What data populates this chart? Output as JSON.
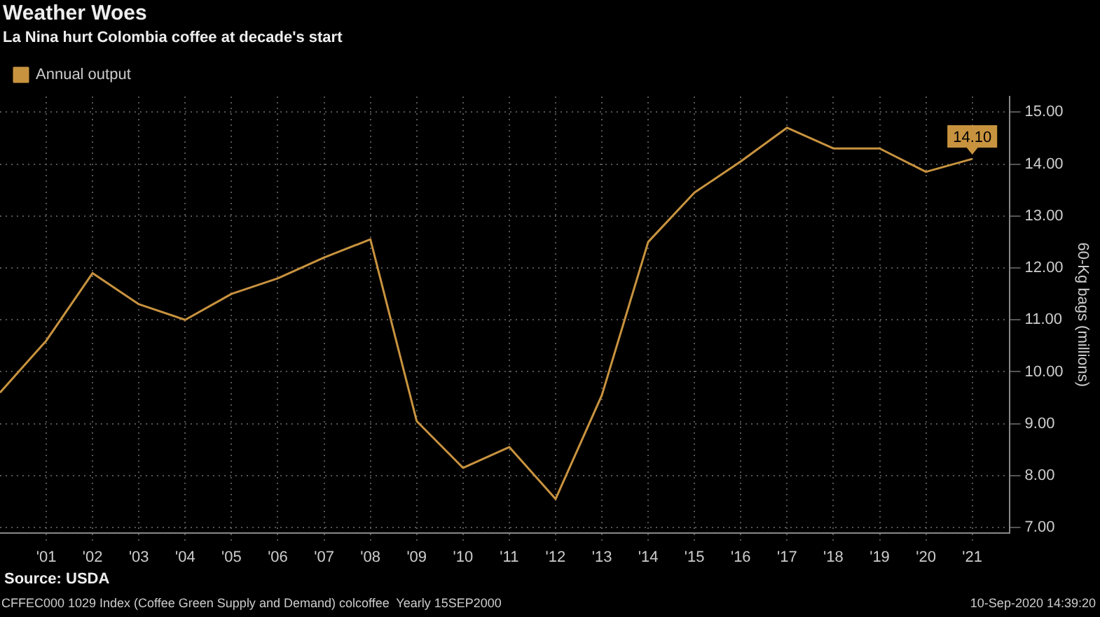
{
  "chart_data": {
    "type": "line",
    "title": "Weather Woes",
    "subtitle": "La Nina hurt Colombia coffee at decade's start",
    "ylabel": "60-Kg bags (millions)",
    "x": [
      2000,
      2001,
      2002,
      2003,
      2004,
      2005,
      2006,
      2007,
      2008,
      2009,
      2010,
      2011,
      2012,
      2013,
      2014,
      2015,
      2016,
      2017,
      2018,
      2019,
      2020,
      2021
    ],
    "series": [
      {
        "name": "Annual output",
        "color": "#c8933f",
        "values": [
          9.6,
          10.6,
          11.9,
          11.3,
          11.0,
          11.5,
          11.8,
          12.2,
          12.55,
          9.05,
          8.15,
          8.55,
          7.55,
          9.55,
          12.5,
          13.45,
          14.05,
          14.7,
          14.3,
          14.3,
          13.85,
          14.1
        ],
        "value_labels": [
          null,
          null,
          null,
          null,
          null,
          null,
          null,
          null,
          null,
          null,
          null,
          null,
          null,
          null,
          null,
          null,
          null,
          null,
          null,
          null,
          null,
          "14.10"
        ]
      }
    ],
    "xlim": [
      2000,
      2021.8
    ],
    "xticks": [
      {
        "value": 2001,
        "label": "'01"
      },
      {
        "value": 2002,
        "label": "'02"
      },
      {
        "value": 2003,
        "label": "'03"
      },
      {
        "value": 2004,
        "label": "'04"
      },
      {
        "value": 2005,
        "label": "'05"
      },
      {
        "value": 2006,
        "label": "'06"
      },
      {
        "value": 2007,
        "label": "'07"
      },
      {
        "value": 2008,
        "label": "'08"
      },
      {
        "value": 2009,
        "label": "'09"
      },
      {
        "value": 2010,
        "label": "'10"
      },
      {
        "value": 2011,
        "label": "'11"
      },
      {
        "value": 2012,
        "label": "'12"
      },
      {
        "value": 2013,
        "label": "'13"
      },
      {
        "value": 2014,
        "label": "'14"
      },
      {
        "value": 2015,
        "label": "'15"
      },
      {
        "value": 2016,
        "label": "'16"
      },
      {
        "value": 2017,
        "label": "'17"
      },
      {
        "value": 2018,
        "label": "'18"
      },
      {
        "value": 2019,
        "label": "'19"
      },
      {
        "value": 2020,
        "label": "'20"
      },
      {
        "value": 2021,
        "label": "'21"
      }
    ],
    "ylim": [
      6.9,
      15.3
    ],
    "yticks": [
      {
        "value": 7,
        "label": "7.00"
      },
      {
        "value": 8,
        "label": "8.00"
      },
      {
        "value": 9,
        "label": "9.00"
      },
      {
        "value": 10,
        "label": "10.00"
      },
      {
        "value": 11,
        "label": "11.00"
      },
      {
        "value": 12,
        "label": "12.00"
      },
      {
        "value": 13,
        "label": "13.00"
      },
      {
        "value": 14,
        "label": "14.00"
      },
      {
        "value": 15,
        "label": "15.00"
      }
    ],
    "grid": true,
    "legend": "top left",
    "marker": "none",
    "line_style": "solid",
    "annotations": [
      "Source: USDA",
      "CFFEC000 1029 Index (Coffee Green Supply and Demand) colcoffee  Yearly 15SEP2000",
      "10-Sep-2020 14:39:20"
    ]
  }
}
